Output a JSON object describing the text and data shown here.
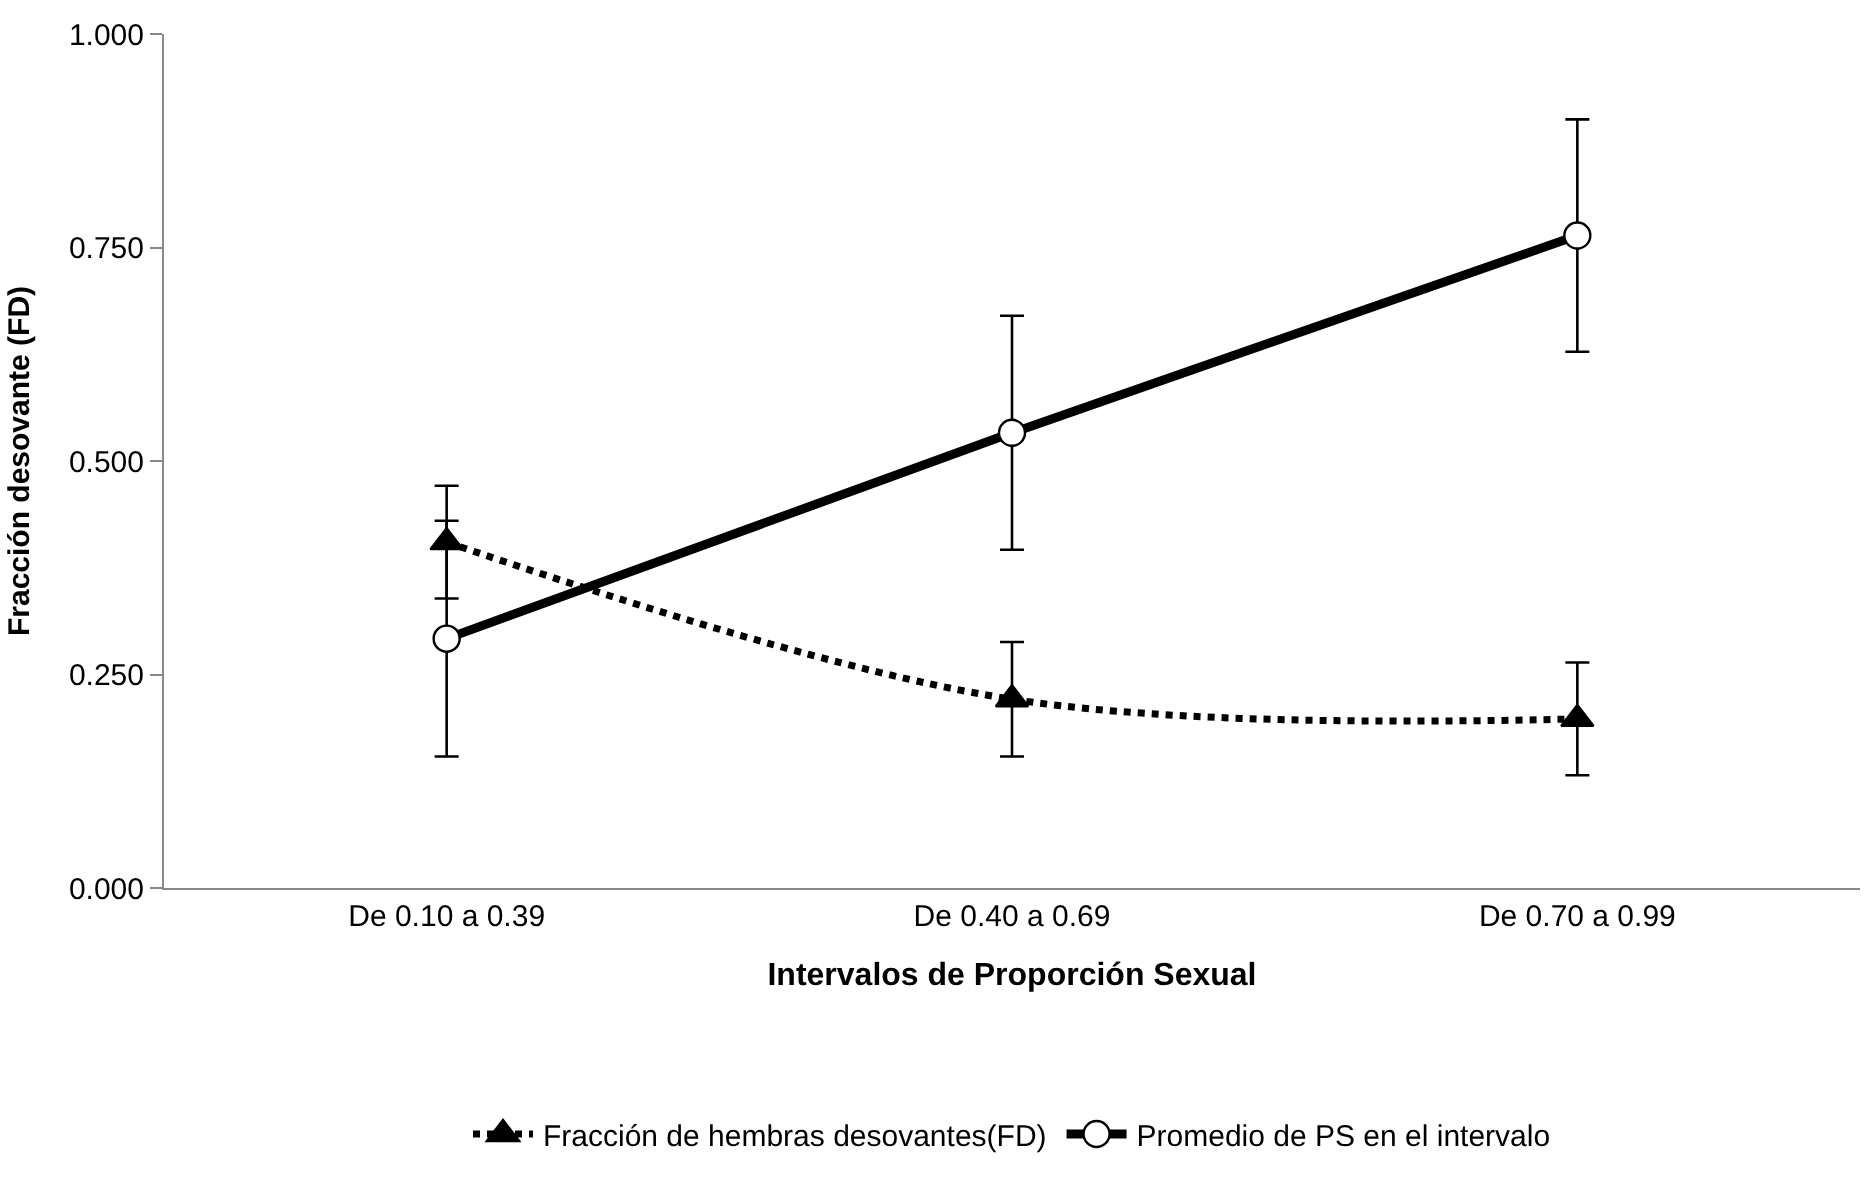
{
  "chart_data": {
    "type": "line",
    "xlabel": "Intervalos de Proporción Sexual",
    "ylabel": "Fracción desovante (FD)",
    "categories": [
      "De 0.10 a 0.39",
      "De 0.40 a 0.69",
      "De 0.70 a 0.99"
    ],
    "series": [
      {
        "name": "Fracción de hembras desovantes(FD)",
        "color": "#000000",
        "values": [
          0.405,
          0.221,
          0.198
        ],
        "errors": [
          0.066,
          0.067,
          0.066
        ],
        "marker": "triangle",
        "line_style": "dotted"
      },
      {
        "name": "Promedio de PS en el intervalo",
        "color": "#000000",
        "values": [
          0.292,
          0.533,
          0.764
        ],
        "errors": [
          0.138,
          0.137,
          0.136
        ],
        "marker": "circle",
        "line_style": "solid"
      }
    ],
    "ylim": [
      0,
      1
    ],
    "yticks": [
      {
        "value": 0,
        "label": "0.000"
      },
      {
        "value": 0.25,
        "label": "0.250"
      },
      {
        "value": 0.5,
        "label": "0.500"
      },
      {
        "value": 0.75,
        "label": "0.750"
      },
      {
        "value": 1,
        "label": "1.000"
      }
    ],
    "legend": "bottom"
  }
}
